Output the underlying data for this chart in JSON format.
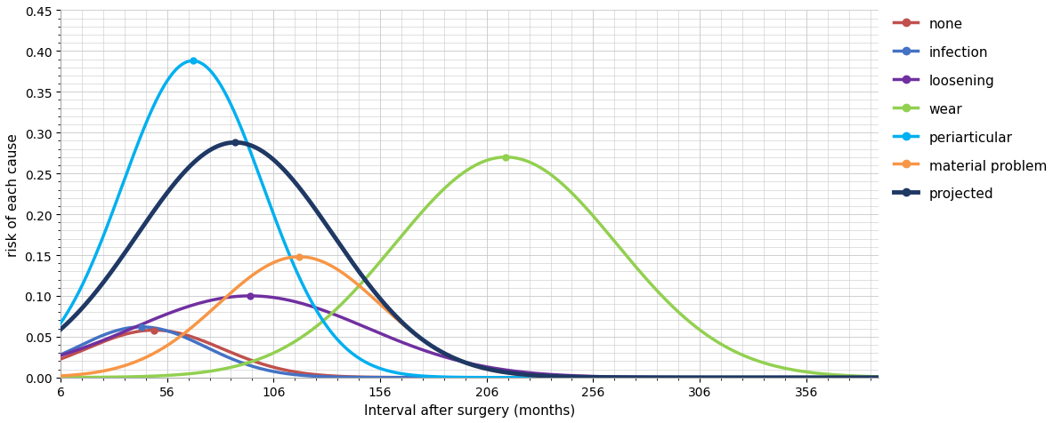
{
  "title": "",
  "xlabel": "Interval after surgery (months)",
  "ylabel": "risk of each cause",
  "xlim": [
    6,
    390
  ],
  "ylim": [
    0,
    0.45
  ],
  "xticks": [
    6,
    56,
    106,
    156,
    206,
    256,
    306,
    356
  ],
  "yticks": [
    0,
    0.05,
    0.1,
    0.15,
    0.2,
    0.25,
    0.3,
    0.35,
    0.4,
    0.45
  ],
  "figsize": [
    11.83,
    4.77
  ],
  "dpi": 100,
  "series": [
    {
      "label": "none",
      "color": "#C0504D",
      "linewidth": 2.5,
      "peak": 0.058,
      "mu": 50,
      "sigma": 32
    },
    {
      "label": "infection",
      "color": "#4472C4",
      "linewidth": 2.5,
      "peak": 0.062,
      "mu": 44,
      "sigma": 30
    },
    {
      "label": "loosening",
      "color": "#7030A0",
      "linewidth": 2.5,
      "peak": 0.1,
      "mu": 95,
      "sigma": 55
    },
    {
      "label": "wear",
      "color": "#92D050",
      "linewidth": 2.5,
      "peak": 0.27,
      "mu": 215,
      "sigma": 52
    },
    {
      "label": "periarticular",
      "color": "#00B0F0",
      "linewidth": 2.5,
      "peak": 0.388,
      "mu": 68,
      "sigma": 33
    },
    {
      "label": "material problem",
      "color": "#F79646",
      "linewidth": 2.5,
      "peak": 0.148,
      "mu": 118,
      "sigma": 38
    },
    {
      "label": "projected",
      "color": "#1F3864",
      "linewidth": 3.5,
      "peak": 0.288,
      "mu": 88,
      "sigma": 46
    }
  ],
  "background_color": "#FFFFFF",
  "grid_color": "#C8C8C8",
  "legend_fontsize": 11,
  "legend_labelspacing": 1.1,
  "axis_fontsize": 11,
  "tick_fontsize": 10
}
